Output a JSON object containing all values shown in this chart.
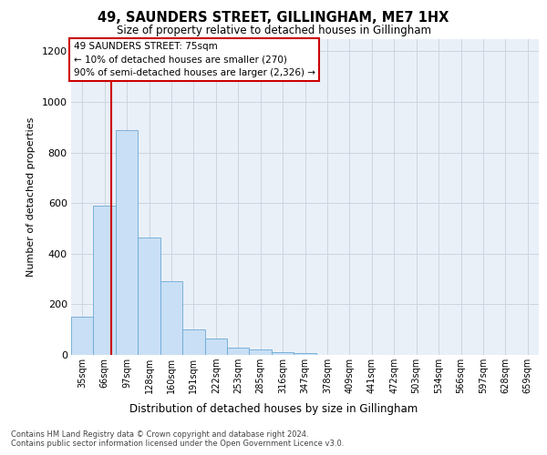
{
  "title": "49, SAUNDERS STREET, GILLINGHAM, ME7 1HX",
  "subtitle": "Size of property relative to detached houses in Gillingham",
  "xlabel": "Distribution of detached houses by size in Gillingham",
  "ylabel": "Number of detached properties",
  "categories": [
    "35sqm",
    "66sqm",
    "97sqm",
    "128sqm",
    "160sqm",
    "191sqm",
    "222sqm",
    "253sqm",
    "285sqm",
    "316sqm",
    "347sqm",
    "378sqm",
    "409sqm",
    "441sqm",
    "472sqm",
    "503sqm",
    "534sqm",
    "566sqm",
    "597sqm",
    "628sqm",
    "659sqm"
  ],
  "values": [
    150,
    590,
    890,
    465,
    290,
    100,
    65,
    30,
    20,
    12,
    8,
    0,
    0,
    0,
    0,
    0,
    0,
    0,
    0,
    0,
    0
  ],
  "bar_color": "#c9dff5",
  "bar_edge_color": "#6aaad4",
  "grid_color": "#ccd5e0",
  "background_color": "#eaf0f8",
  "annotation_line1": "49 SAUNDERS STREET: 75sqm",
  "annotation_line2": "← 10% of detached houses are smaller (270)",
  "annotation_line3": "90% of semi-detached houses are larger (2,326) →",
  "annotation_box_facecolor": "#ffffff",
  "annotation_box_edgecolor": "#cc0000",
  "vline_color": "#cc0000",
  "vline_pos": 1.29,
  "ylim": [
    0,
    1250
  ],
  "yticks": [
    0,
    200,
    400,
    600,
    800,
    1000,
    1200
  ],
  "footer_line1": "Contains HM Land Registry data © Crown copyright and database right 2024.",
  "footer_line2": "Contains public sector information licensed under the Open Government Licence v3.0."
}
